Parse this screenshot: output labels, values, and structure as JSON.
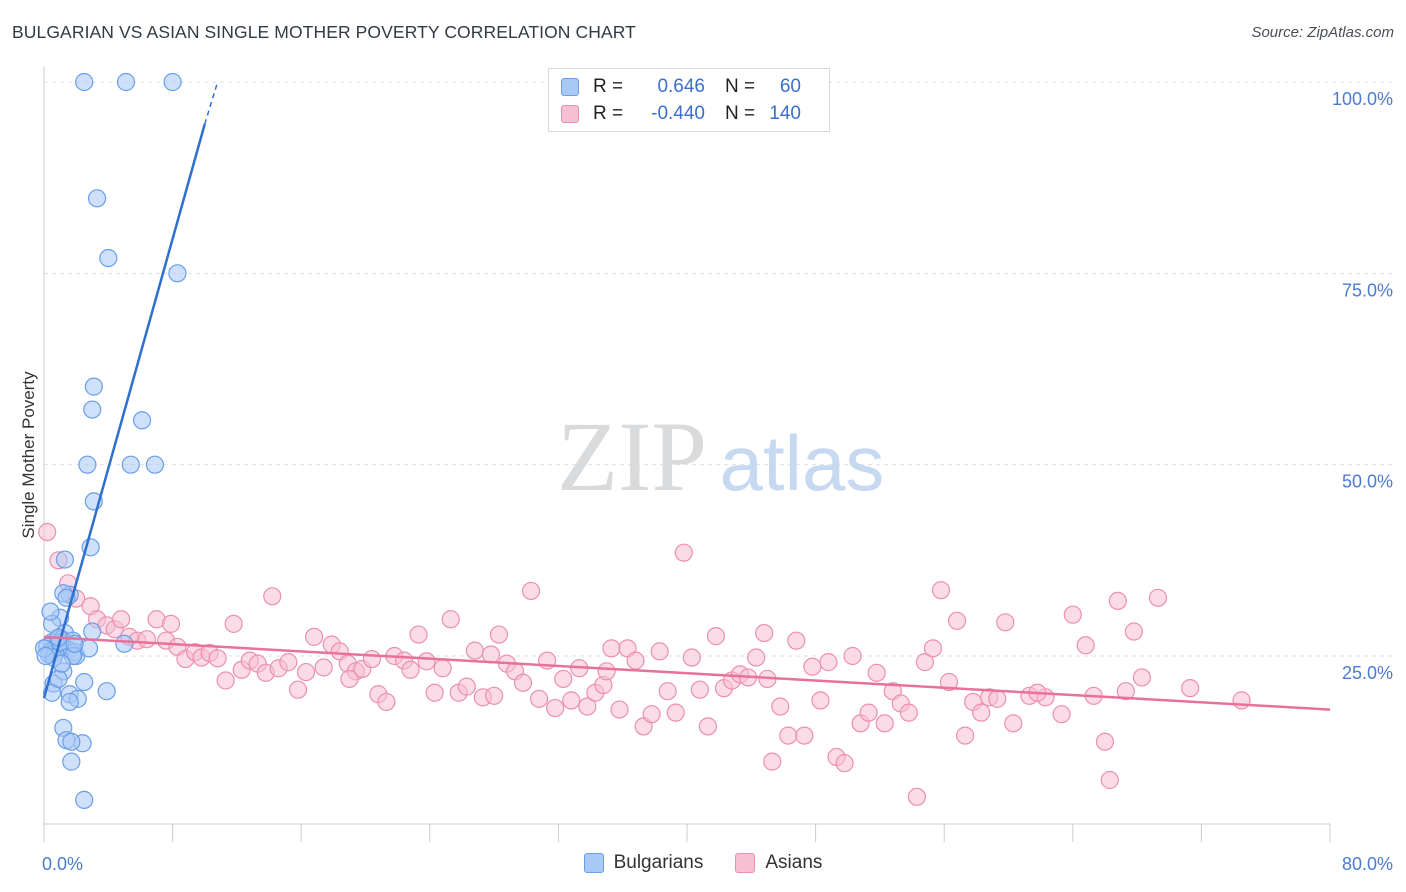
{
  "header": {
    "title": "BULGARIAN VS ASIAN SINGLE MOTHER POVERTY CORRELATION CHART",
    "source": "Source: ZipAtlas.com"
  },
  "watermark": {
    "zip": "ZIP",
    "atlas": "atlas"
  },
  "legend": {
    "rows": [
      {
        "r_label": "R =",
        "r_value": "0.646",
        "n_label": "N =",
        "n_value": "60",
        "color": "#a8c8f5",
        "border": "#6a9ee6"
      },
      {
        "r_label": "R =",
        "r_value": "-0.440",
        "n_label": "N =",
        "n_value": "140",
        "color": "#f8bfd2",
        "border": "#ec8fb0"
      }
    ]
  },
  "bottom_legend": {
    "series1": "Bulgarians",
    "series2": "Asians"
  },
  "colors": {
    "blue_fill": "#a8c8f5",
    "blue_stroke": "#6a9ee6",
    "blue_line": "#2f6fd0",
    "pink_fill": "#f8bfd2",
    "pink_stroke": "#ec8fb0",
    "pink_line": "#e8719a",
    "axis_text": "#4a7bd0",
    "grid": "#dde0e5"
  },
  "chart_data": {
    "type": "scatter",
    "title": "BULGARIAN VS ASIAN SINGLE MOTHER POVERTY CORRELATION CHART",
    "xlabel": "",
    "ylabel": "Single Mother Poverty",
    "xlim": [
      0,
      80
    ],
    "ylim": [
      0,
      105
    ],
    "x_ticks_labels": [
      "0.0%",
      "80.0%"
    ],
    "y_ticks": [
      25,
      50,
      75,
      100
    ],
    "y_tick_labels": [
      "25.0%",
      "50.0%",
      "75.0%",
      "100.0%"
    ],
    "grid": "horizontal dashed",
    "legend_position": "top-center",
    "series": [
      {
        "name": "Bulgarians",
        "R": 0.646,
        "N": 60,
        "trend": {
          "x": [
            0,
            10
          ],
          "y": [
            19.5,
            94.5
          ],
          "dashed_extension": {
            "x": [
              10,
              10.8
            ],
            "y": [
              94.5,
              100
            ]
          }
        },
        "points": [
          [
            2.5,
            100
          ],
          [
            5.1,
            100
          ],
          [
            8.0,
            100
          ],
          [
            3.3,
            84.8
          ],
          [
            4.0,
            77.0
          ],
          [
            8.3,
            75.0
          ],
          [
            3.1,
            60.2
          ],
          [
            3.0,
            57.2
          ],
          [
            6.1,
            55.8
          ],
          [
            2.7,
            50.0
          ],
          [
            5.4,
            50.0
          ],
          [
            6.9,
            50.0
          ],
          [
            3.1,
            45.2
          ],
          [
            2.9,
            39.2
          ],
          [
            1.3,
            37.6
          ],
          [
            1.6,
            33.0
          ],
          [
            1.2,
            33.2
          ],
          [
            1.4,
            32.6
          ],
          [
            1.0,
            30.0
          ],
          [
            0.5,
            29.2
          ],
          [
            1.3,
            28.0
          ],
          [
            3.0,
            28.2
          ],
          [
            1.1,
            27.2
          ],
          [
            1.8,
            27.0
          ],
          [
            0.5,
            26.8
          ],
          [
            0.2,
            26.2
          ],
          [
            0.8,
            26.4
          ],
          [
            1.2,
            26.0
          ],
          [
            1.5,
            25.8
          ],
          [
            0.4,
            25.6
          ],
          [
            0.7,
            25.4
          ],
          [
            1.9,
            25.5
          ],
          [
            5.0,
            26.6
          ],
          [
            2.0,
            25.0
          ],
          [
            0.3,
            25.2
          ],
          [
            0.6,
            24.8
          ],
          [
            1.2,
            23.0
          ],
          [
            2.5,
            21.6
          ],
          [
            0.6,
            21.4
          ],
          [
            0.5,
            20.2
          ],
          [
            3.9,
            20.4
          ],
          [
            1.6,
            20.0
          ],
          [
            2.1,
            19.4
          ],
          [
            1.6,
            19.0
          ],
          [
            1.2,
            15.6
          ],
          [
            1.4,
            14.0
          ],
          [
            2.4,
            13.6
          ],
          [
            1.7,
            13.8
          ],
          [
            1.7,
            11.2
          ],
          [
            2.5,
            6.2
          ],
          [
            0.0,
            26.0
          ],
          [
            0.1,
            25.0
          ],
          [
            1.0,
            26.8
          ],
          [
            0.9,
            27.4
          ],
          [
            1.8,
            25.0
          ],
          [
            2.8,
            26.0
          ],
          [
            0.4,
            30.8
          ],
          [
            1.9,
            26.6
          ],
          [
            0.9,
            22.0
          ],
          [
            1.1,
            24.0
          ]
        ]
      },
      {
        "name": "Asians",
        "R": -0.44,
        "N": 140,
        "trend": {
          "x": [
            0,
            80
          ],
          "y": [
            27.5,
            18.0
          ]
        },
        "points": [
          [
            0.2,
            41.2
          ],
          [
            0.9,
            37.5
          ],
          [
            1.5,
            34.5
          ],
          [
            2.0,
            32.5
          ],
          [
            2.9,
            31.5
          ],
          [
            3.3,
            29.8
          ],
          [
            3.9,
            29.0
          ],
          [
            4.4,
            28.5
          ],
          [
            4.8,
            29.8
          ],
          [
            5.3,
            27.5
          ],
          [
            5.8,
            27.0
          ],
          [
            6.4,
            27.2
          ],
          [
            7.0,
            29.8
          ],
          [
            7.6,
            27.0
          ],
          [
            7.9,
            29.2
          ],
          [
            8.3,
            26.2
          ],
          [
            8.8,
            24.6
          ],
          [
            9.4,
            25.5
          ],
          [
            9.8,
            24.8
          ],
          [
            10.3,
            25.4
          ],
          [
            10.8,
            24.7
          ],
          [
            11.3,
            21.8
          ],
          [
            11.8,
            29.2
          ],
          [
            12.3,
            23.2
          ],
          [
            12.8,
            24.4
          ],
          [
            13.3,
            24.0
          ],
          [
            13.8,
            22.8
          ],
          [
            14.2,
            32.8
          ],
          [
            14.6,
            23.4
          ],
          [
            15.2,
            24.2
          ],
          [
            15.8,
            20.6
          ],
          [
            16.3,
            22.9
          ],
          [
            16.8,
            27.5
          ],
          [
            17.4,
            23.5
          ],
          [
            17.9,
            26.5
          ],
          [
            18.4,
            25.6
          ],
          [
            18.9,
            24.0
          ],
          [
            19.4,
            23.0
          ],
          [
            19.8,
            23.3
          ],
          [
            20.4,
            24.6
          ],
          [
            20.8,
            20.0
          ],
          [
            21.3,
            19.0
          ],
          [
            21.8,
            25.0
          ],
          [
            22.4,
            24.4
          ],
          [
            22.8,
            23.2
          ],
          [
            23.3,
            27.8
          ],
          [
            23.8,
            24.3
          ],
          [
            24.3,
            20.2
          ],
          [
            24.8,
            23.4
          ],
          [
            25.3,
            29.8
          ],
          [
            25.8,
            20.2
          ],
          [
            26.3,
            21.0
          ],
          [
            26.8,
            25.7
          ],
          [
            27.3,
            19.6
          ],
          [
            27.8,
            25.2
          ],
          [
            28.3,
            27.8
          ],
          [
            28.8,
            24.0
          ],
          [
            29.3,
            23.0
          ],
          [
            29.8,
            21.5
          ],
          [
            30.3,
            33.5
          ],
          [
            30.8,
            19.4
          ],
          [
            31.3,
            24.4
          ],
          [
            31.8,
            18.2
          ],
          [
            32.3,
            22.0
          ],
          [
            32.8,
            19.2
          ],
          [
            33.3,
            23.4
          ],
          [
            33.8,
            18.4
          ],
          [
            34.3,
            20.2
          ],
          [
            34.8,
            21.2
          ],
          [
            35.3,
            26.0
          ],
          [
            35.8,
            18.0
          ],
          [
            36.3,
            26.0
          ],
          [
            36.8,
            24.4
          ],
          [
            37.3,
            15.8
          ],
          [
            37.8,
            17.4
          ],
          [
            38.3,
            25.6
          ],
          [
            38.8,
            20.4
          ],
          [
            39.3,
            17.6
          ],
          [
            39.8,
            38.5
          ],
          [
            40.3,
            24.8
          ],
          [
            40.8,
            20.6
          ],
          [
            41.3,
            15.8
          ],
          [
            41.8,
            27.6
          ],
          [
            42.3,
            20.8
          ],
          [
            42.8,
            21.8
          ],
          [
            43.3,
            22.6
          ],
          [
            43.8,
            22.2
          ],
          [
            44.3,
            24.8
          ],
          [
            44.8,
            28.0
          ],
          [
            45.3,
            11.2
          ],
          [
            45.8,
            18.4
          ],
          [
            46.3,
            14.6
          ],
          [
            46.8,
            27.0
          ],
          [
            47.3,
            14.6
          ],
          [
            47.8,
            23.6
          ],
          [
            48.3,
            19.2
          ],
          [
            48.8,
            24.2
          ],
          [
            49.3,
            11.8
          ],
          [
            49.8,
            11.0
          ],
          [
            50.3,
            25.0
          ],
          [
            50.8,
            16.2
          ],
          [
            51.3,
            17.6
          ],
          [
            51.8,
            22.8
          ],
          [
            52.3,
            16.2
          ],
          [
            52.8,
            20.4
          ],
          [
            53.3,
            18.8
          ],
          [
            53.8,
            17.6
          ],
          [
            54.3,
            6.6
          ],
          [
            54.8,
            24.2
          ],
          [
            55.3,
            26.0
          ],
          [
            55.8,
            33.6
          ],
          [
            56.3,
            21.6
          ],
          [
            56.8,
            29.6
          ],
          [
            57.3,
            14.6
          ],
          [
            57.8,
            19.0
          ],
          [
            58.3,
            17.6
          ],
          [
            58.8,
            19.6
          ],
          [
            59.3,
            19.4
          ],
          [
            59.8,
            29.4
          ],
          [
            60.3,
            16.2
          ],
          [
            61.3,
            19.8
          ],
          [
            62.3,
            19.6
          ],
          [
            63.3,
            17.4
          ],
          [
            64.0,
            30.4
          ],
          [
            64.8,
            26.4
          ],
          [
            65.3,
            19.8
          ],
          [
            66.0,
            13.8
          ],
          [
            66.3,
            8.8
          ],
          [
            66.8,
            32.2
          ],
          [
            67.3,
            20.4
          ],
          [
            67.8,
            28.2
          ],
          [
            68.3,
            22.2
          ],
          [
            69.3,
            32.6
          ],
          [
            71.3,
            20.8
          ],
          [
            74.5,
            19.2
          ],
          [
            61.8,
            20.2
          ],
          [
            19.0,
            22.0
          ],
          [
            28.0,
            19.8
          ],
          [
            35.0,
            23.0
          ],
          [
            45.0,
            22.0
          ]
        ]
      }
    ]
  }
}
